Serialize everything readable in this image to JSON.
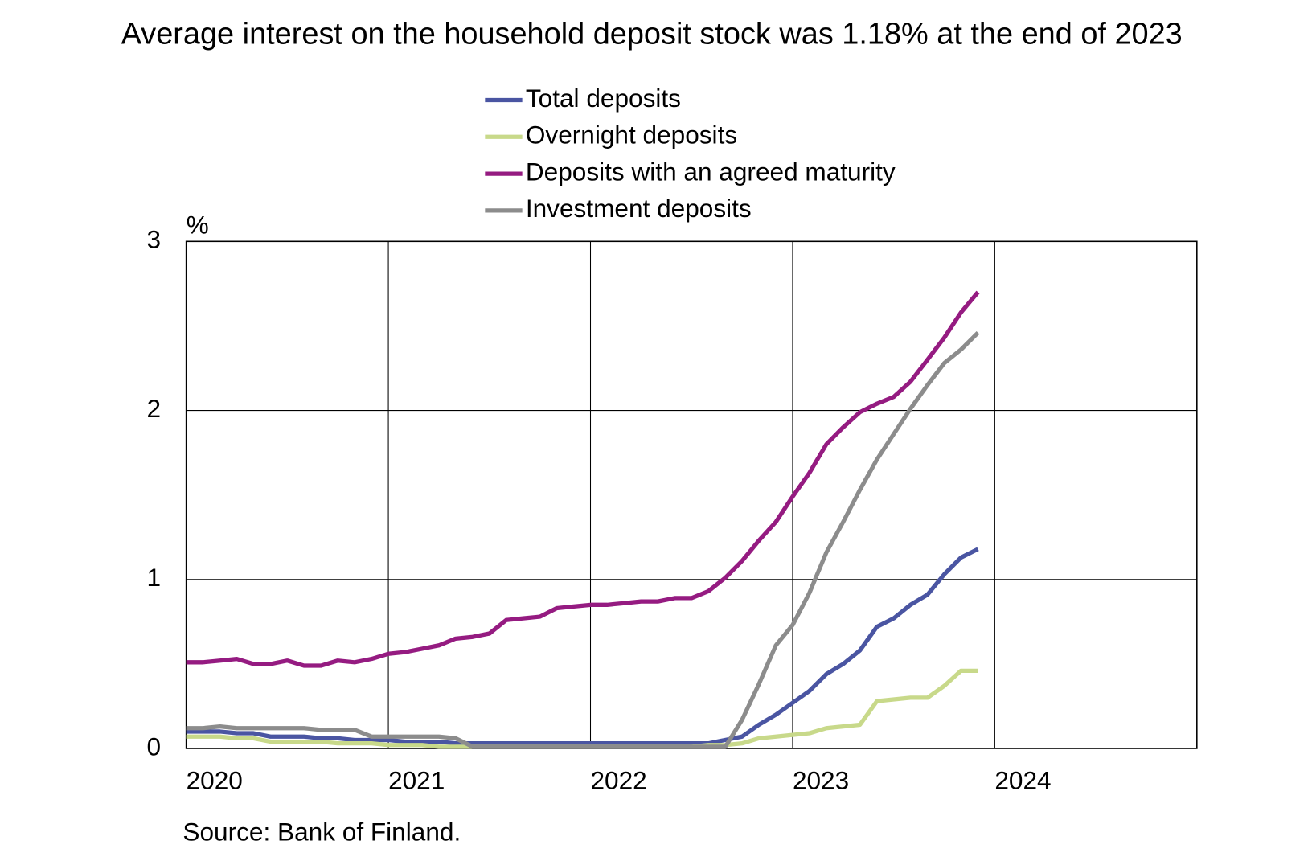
{
  "chart_data": {
    "type": "line",
    "title": "Average interest on the household deposit stock was 1.18% at the end of 2023",
    "y_label": "%",
    "source": "Source: Bank of Finland.",
    "x": [
      2020,
      2020.083,
      2020.167,
      2020.25,
      2020.333,
      2020.417,
      2020.5,
      2020.583,
      2020.667,
      2020.75,
      2020.833,
      2020.917,
      2021,
      2021.083,
      2021.167,
      2021.25,
      2021.333,
      2021.417,
      2021.5,
      2021.583,
      2021.667,
      2021.75,
      2021.833,
      2021.917,
      2022,
      2022.083,
      2022.167,
      2022.25,
      2022.333,
      2022.417,
      2022.5,
      2022.583,
      2022.667,
      2022.75,
      2022.833,
      2022.917,
      2023,
      2023.083,
      2023.167,
      2023.25,
      2023.333,
      2023.417,
      2023.5,
      2023.583,
      2023.667,
      2023.75,
      2023.833,
      2023.917
    ],
    "series": [
      {
        "name": "Total deposits",
        "color": "#4a55a2",
        "values": [
          0.1,
          0.1,
          0.1,
          0.09,
          0.09,
          0.07,
          0.07,
          0.07,
          0.06,
          0.06,
          0.05,
          0.05,
          0.05,
          0.04,
          0.04,
          0.04,
          0.03,
          0.03,
          0.03,
          0.03,
          0.03,
          0.03,
          0.03,
          0.03,
          0.03,
          0.03,
          0.03,
          0.03,
          0.03,
          0.03,
          0.03,
          0.03,
          0.05,
          0.07,
          0.14,
          0.2,
          0.27,
          0.34,
          0.44,
          0.5,
          0.58,
          0.72,
          0.77,
          0.85,
          0.91,
          1.03,
          1.13,
          1.18
        ]
      },
      {
        "name": "Overnight deposits",
        "color": "#c8d98a",
        "values": [
          0.07,
          0.07,
          0.07,
          0.06,
          0.06,
          0.04,
          0.04,
          0.04,
          0.04,
          0.03,
          0.03,
          0.03,
          0.02,
          0.02,
          0.02,
          0.01,
          0.01,
          0.01,
          0.01,
          0.01,
          0.01,
          0.01,
          0.01,
          0.01,
          0.01,
          0.01,
          0.01,
          0.01,
          0.01,
          0.01,
          0.01,
          0.02,
          0.02,
          0.03,
          0.06,
          0.07,
          0.08,
          0.09,
          0.12,
          0.13,
          0.14,
          0.28,
          0.29,
          0.3,
          0.3,
          0.37,
          0.46,
          0.46
        ]
      },
      {
        "name": "Deposits with an agreed maturity",
        "color": "#951b81",
        "values": [
          0.51,
          0.51,
          0.52,
          0.53,
          0.5,
          0.5,
          0.52,
          0.49,
          0.49,
          0.52,
          0.51,
          0.53,
          0.56,
          0.57,
          0.59,
          0.61,
          0.65,
          0.66,
          0.68,
          0.76,
          0.77,
          0.78,
          0.83,
          0.84,
          0.85,
          0.85,
          0.86,
          0.87,
          0.87,
          0.89,
          0.89,
          0.93,
          1.01,
          1.11,
          1.23,
          1.34,
          1.49,
          1.63,
          1.8,
          1.9,
          1.99,
          2.04,
          2.08,
          2.17,
          2.3,
          2.43,
          2.58,
          2.7
        ]
      },
      {
        "name": "Investment deposits",
        "color": "#8c8c8c",
        "values": [
          0.12,
          0.12,
          0.13,
          0.12,
          0.12,
          0.12,
          0.12,
          0.12,
          0.11,
          0.11,
          0.11,
          0.07,
          0.07,
          0.07,
          0.07,
          0.07,
          0.06,
          0.01,
          0.01,
          0.01,
          0.01,
          0.01,
          0.01,
          0.01,
          0.01,
          0.01,
          0.01,
          0.01,
          0.01,
          0.01,
          0.01,
          0.01,
          0.01,
          0.17,
          0.38,
          0.61,
          0.73,
          0.92,
          1.16,
          1.34,
          1.53,
          1.71,
          1.86,
          2.01,
          2.15,
          2.28,
          2.36,
          2.46
        ]
      }
    ],
    "xlim": [
      2020,
      2025
    ],
    "xticks": [
      2020,
      2021,
      2022,
      2023,
      2024
    ],
    "ylim": [
      0,
      3
    ],
    "yticks": [
      0,
      1,
      2,
      3
    ],
    "grid": true,
    "legend": "top"
  }
}
